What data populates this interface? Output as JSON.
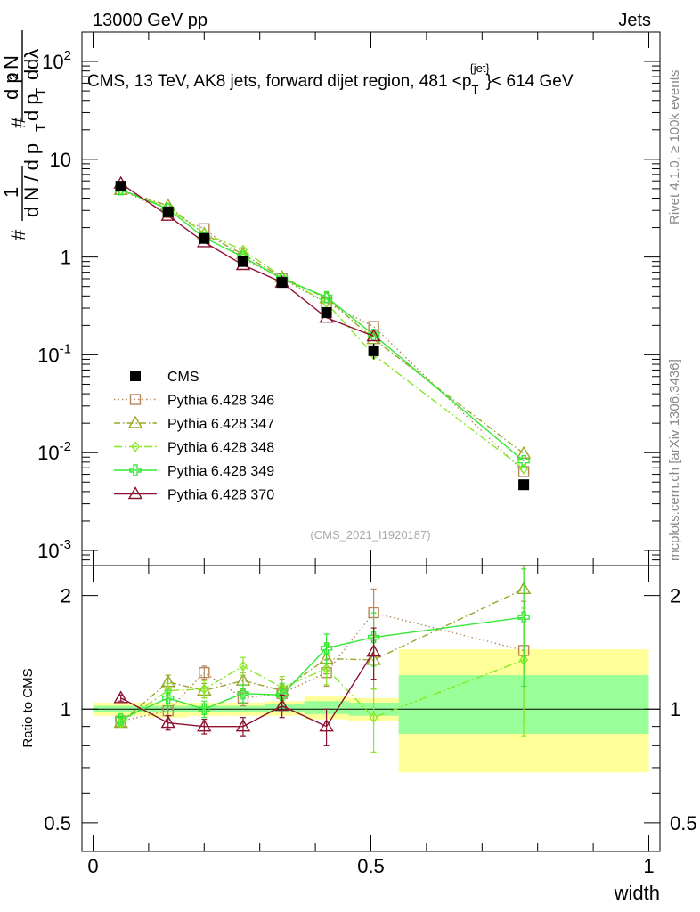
{
  "header": {
    "energy_label": "13000 GeV pp",
    "category_label": "Jets",
    "rivet_label": "Rivet 4.1.0, ≥ 100k events",
    "mcplots_label": "mcplots.cern.ch [arXiv:1306.3436]",
    "analysis_id": "(CMS_2021_I1920187)"
  },
  "chart_data": [
    {
      "type": "line",
      "panel": "main",
      "title": "CMS, 13 TeV, AK8 jets, forward dijet region, 481 <p",
      "title_sub": "T",
      "title_sup": "{jet}",
      "title_tail": "}< 614 GeV",
      "ylabel_parts": [
        "#",
        "1",
        "d N / d p",
        "T",
        "#",
        "d p",
        "T",
        "d",
        "2",
        "N",
        "dλ"
      ],
      "yscale": "log",
      "ylim": [
        0.0007,
        200
      ],
      "xlim": [
        -0.02,
        1.02
      ],
      "y_ticks": [
        {
          "v": 0.001,
          "base": "10",
          "exp": "-3"
        },
        {
          "v": 0.01,
          "base": "10",
          "exp": "-2"
        },
        {
          "v": 0.1,
          "base": "10",
          "exp": "-1"
        },
        {
          "v": 1,
          "base": "1",
          "exp": ""
        },
        {
          "v": 10,
          "base": "10",
          "exp": ""
        },
        {
          "v": 100,
          "base": "10",
          "exp": "2"
        }
      ],
      "x": [
        0.05,
        0.135,
        0.2,
        0.27,
        0.34,
        0.42,
        0.505,
        0.775
      ],
      "series": [
        {
          "name": "CMS",
          "color": "#000000",
          "marker": "square",
          "dash": "none",
          "values": [
            5.3,
            2.9,
            1.55,
            0.9,
            0.55,
            0.27,
            0.11,
            0.0047
          ],
          "errors": [
            0.2,
            0.1,
            0.08,
            0.05,
            0.04,
            0.03,
            0.02,
            0.0005
          ]
        },
        {
          "name": "Pythia 6.428 346",
          "color": "#b5875a",
          "marker": "open-square",
          "dash": "1.5,3",
          "values": [
            4.9,
            2.85,
            1.95,
            0.97,
            0.6,
            0.34,
            0.195,
            0.0064
          ]
        },
        {
          "name": "Pythia 6.428 347",
          "color": "#9aa62a",
          "marker": "open-triangle",
          "dash": "7,3,1.5,3",
          "values": [
            4.85,
            3.35,
            1.72,
            1.07,
            0.62,
            0.38,
            0.145,
            0.0098
          ]
        },
        {
          "name": "Pythia 6.428 348",
          "color": "#86e826",
          "marker": "open-diamond",
          "dash": "9,3,2,3",
          "values": [
            4.85,
            3.2,
            1.75,
            1.18,
            0.63,
            0.34,
            0.1,
            0.0068
          ]
        },
        {
          "name": "Pythia 6.428 349",
          "color": "#34e834",
          "marker": "cross",
          "dash": "none",
          "values": [
            4.9,
            3.1,
            1.58,
            1.0,
            0.6,
            0.39,
            0.16,
            0.0082
          ]
        },
        {
          "name": "Pythia 6.428 370",
          "color": "#8c1230",
          "marker": "open-triangle",
          "dash": "none",
          "values": [
            5.65,
            2.65,
            1.42,
            0.83,
            0.55,
            0.24,
            0.155,
            null
          ]
        }
      ]
    },
    {
      "type": "line",
      "panel": "ratio",
      "ylabel": "Ratio to CMS",
      "xlabel": "width",
      "yscale": "log",
      "ylim": [
        0.42,
        2.4
      ],
      "xlim": [
        -0.02,
        1.02
      ],
      "y_ticks": [
        {
          "v": 0.5,
          "label": "0.5"
        },
        {
          "v": 1,
          "label": "1"
        },
        {
          "v": 2,
          "label": "2"
        }
      ],
      "x_ticks": [
        {
          "v": 0,
          "label": "0"
        },
        {
          "v": 0.5,
          "label": "0.5"
        },
        {
          "v": 1,
          "label": "1"
        }
      ],
      "bands": [
        {
          "x0": 0.0,
          "x1": 0.1,
          "stat": [
            0.98,
            1.02
          ],
          "total": [
            0.96,
            1.04
          ]
        },
        {
          "x0": 0.1,
          "x1": 0.17,
          "stat": [
            0.98,
            1.02
          ],
          "total": [
            0.95,
            1.04
          ]
        },
        {
          "x0": 0.17,
          "x1": 0.24,
          "stat": [
            0.98,
            1.02
          ],
          "total": [
            0.96,
            1.04
          ]
        },
        {
          "x0": 0.24,
          "x1": 0.31,
          "stat": [
            0.98,
            1.02
          ],
          "total": [
            0.96,
            1.04
          ]
        },
        {
          "x0": 0.31,
          "x1": 0.38,
          "stat": [
            0.98,
            1.03
          ],
          "total": [
            0.96,
            1.05
          ]
        },
        {
          "x0": 0.38,
          "x1": 0.46,
          "stat": [
            0.97,
            1.05
          ],
          "total": [
            0.94,
            1.08
          ]
        },
        {
          "x0": 0.46,
          "x1": 0.55,
          "stat": [
            0.96,
            1.04
          ],
          "total": [
            0.93,
            1.07
          ]
        },
        {
          "x0": 0.55,
          "x1": 1.0,
          "stat": [
            0.86,
            1.23
          ],
          "total": [
            0.68,
            1.44
          ]
        }
      ],
      "series": [
        {
          "name": "Pythia 6.428 346",
          "values": [
            0.93,
            0.99,
            1.25,
            1.07,
            1.1,
            1.25,
            1.8,
            1.43
          ],
          "errors": [
            0.02,
            0.03,
            0.05,
            0.05,
            0.06,
            0.1,
            0.28,
            0.5
          ]
        },
        {
          "name": "Pythia 6.428 347",
          "values": [
            0.92,
            1.18,
            1.12,
            1.19,
            1.12,
            1.36,
            1.35,
            2.08
          ],
          "errors": [
            0.02,
            0.05,
            0.05,
            0.06,
            0.08,
            0.12,
            0.22,
            0.7
          ]
        },
        {
          "name": "Pythia 6.428 348",
          "values": [
            0.92,
            1.12,
            1.13,
            1.3,
            1.14,
            1.28,
            0.95,
            1.35
          ],
          "errors": [
            0.02,
            0.05,
            0.06,
            0.07,
            0.08,
            0.12,
            0.18,
            0.5
          ]
        },
        {
          "name": "Pythia 6.428 349",
          "values": [
            0.94,
            1.07,
            1.0,
            1.1,
            1.09,
            1.45,
            1.55,
            1.75
          ],
          "errors": [
            0.02,
            0.05,
            0.05,
            0.06,
            0.08,
            0.13,
            0.25,
            0.6
          ]
        },
        {
          "name": "Pythia 6.428 370",
          "values": [
            1.07,
            0.92,
            0.9,
            0.9,
            1.02,
            0.9,
            1.42,
            null
          ],
          "errors": [
            0.02,
            0.04,
            0.04,
            0.05,
            0.07,
            0.1,
            0.22,
            0
          ]
        }
      ]
    }
  ]
}
